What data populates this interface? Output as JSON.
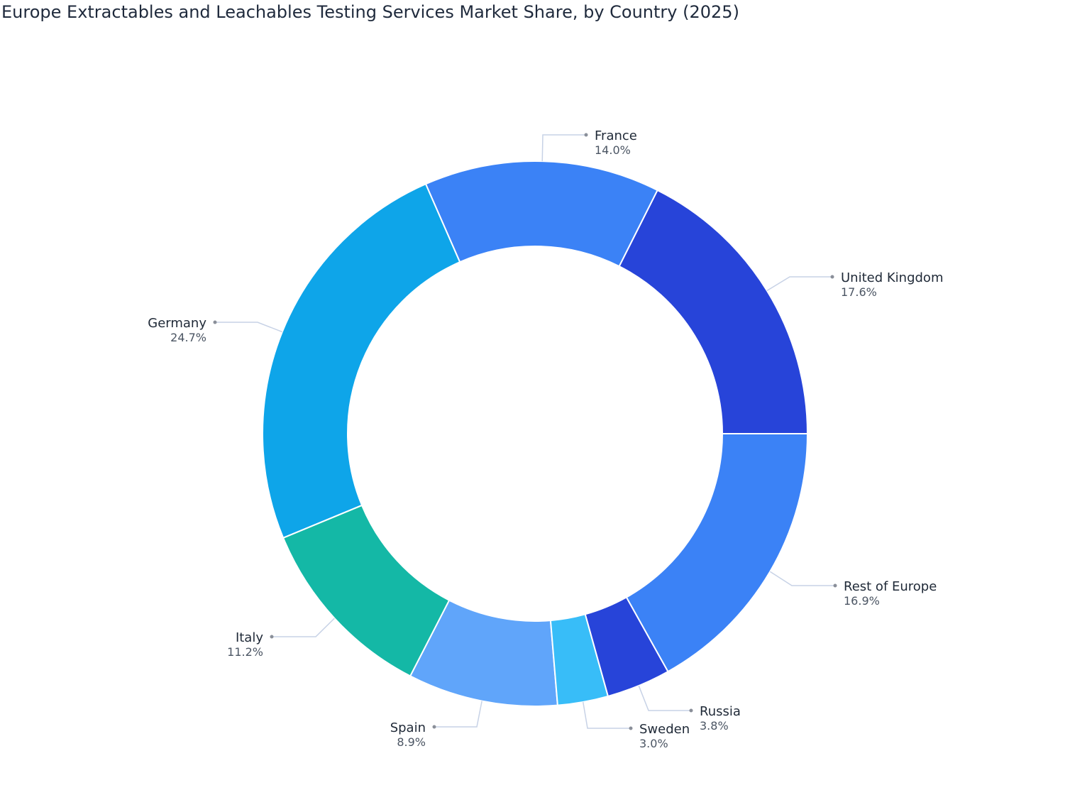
{
  "chart_data": {
    "type": "pie",
    "donut": true,
    "title": "Europe Extractables and Leachables Testing Services Market Share, by Country (2025)",
    "categories": [
      "United Kingdom",
      "France",
      "Germany",
      "Italy",
      "Spain",
      "Sweden",
      "Russia",
      "Rest of Europe"
    ],
    "values": [
      17.6,
      14.0,
      24.7,
      11.2,
      8.9,
      3.0,
      3.8,
      16.9
    ],
    "value_labels": [
      "17.6%",
      "14.0%",
      "24.7%",
      "11.2%",
      "8.9%",
      "3.0%",
      "3.8%",
      "16.9%"
    ],
    "colors": [
      "#2744d9",
      "#3b82f6",
      "#0ea5e9",
      "#14b8a6",
      "#60a5fa",
      "#38bdf8",
      "#2744d9",
      "#3b82f6"
    ],
    "legend": "none",
    "labels": "outside with leader lines"
  }
}
